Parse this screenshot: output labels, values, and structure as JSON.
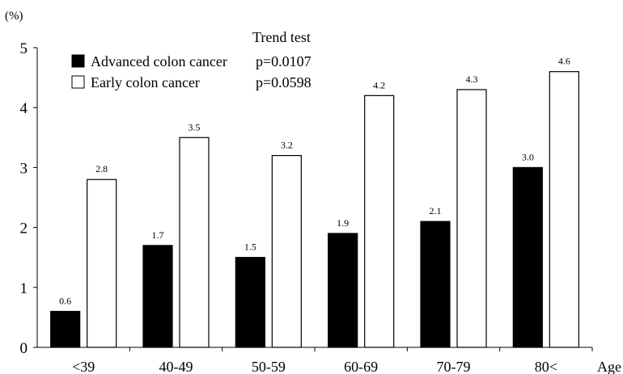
{
  "chart_data": {
    "type": "bar",
    "ylabel": "(%)",
    "xlabel": "Age",
    "ylim": [
      0,
      5
    ],
    "yticks": [
      0,
      1,
      2,
      3,
      4,
      5
    ],
    "grid": false,
    "categories": [
      "<39",
      "40-49",
      "50-59",
      "60-69",
      "70-79",
      "80<"
    ],
    "legend": {
      "title": "Trend test",
      "placement": "top-left"
    },
    "series": [
      {
        "name": "Advanced colon cancer",
        "pvalue": "p=0.0107",
        "color": "#000000",
        "values": [
          0.6,
          1.7,
          1.5,
          1.9,
          2.1,
          3.0
        ],
        "labels": [
          "0.6",
          "1.7",
          "1.5",
          "1.9",
          "2.1",
          "3.0"
        ]
      },
      {
        "name": "Early colon cancer",
        "pvalue": "p=0.0598",
        "color": "#ffffff",
        "values": [
          2.8,
          3.5,
          3.2,
          4.2,
          4.3,
          4.6
        ],
        "labels": [
          "2.8",
          "3.5",
          "3.2",
          "4.2",
          "4.3",
          "4.6"
        ]
      }
    ]
  }
}
